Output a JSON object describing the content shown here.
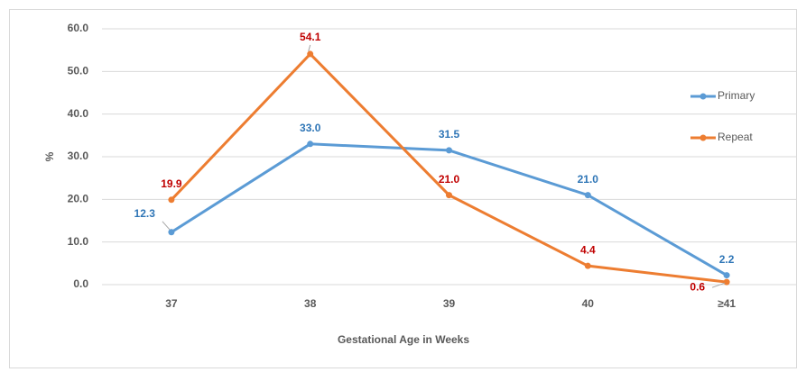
{
  "chart_data": {
    "type": "line",
    "categories": [
      "37",
      "38",
      "39",
      "40",
      "≥41"
    ],
    "series": [
      {
        "name": "Primary",
        "color": "#5b9bd5",
        "values": [
          12.3,
          33.0,
          31.5,
          21.0,
          2.2
        ],
        "value_labels": [
          "12.3",
          "33.0",
          "31.5",
          "21.0",
          "2.2"
        ]
      },
      {
        "name": "Repeat",
        "color": "#ed7d31",
        "values": [
          19.9,
          54.1,
          21.0,
          4.4,
          0.6
        ],
        "value_labels": [
          "19.9",
          "54.1",
          "21.0",
          "4.4",
          "0.6"
        ]
      }
    ],
    "ylim": [
      0,
      60
    ],
    "yticks": [
      {
        "value": 0,
        "label": "0.0"
      },
      {
        "value": 10,
        "label": "10.0"
      },
      {
        "value": 20,
        "label": "20.0"
      },
      {
        "value": 30,
        "label": "30.0"
      },
      {
        "value": 40,
        "label": "40.0"
      },
      {
        "value": 50,
        "label": "50.0"
      },
      {
        "value": 60,
        "label": "60.0"
      }
    ],
    "ylabel": "%",
    "xlabel": "Gestational Age in Weeks",
    "grid": true,
    "legend": "right"
  }
}
